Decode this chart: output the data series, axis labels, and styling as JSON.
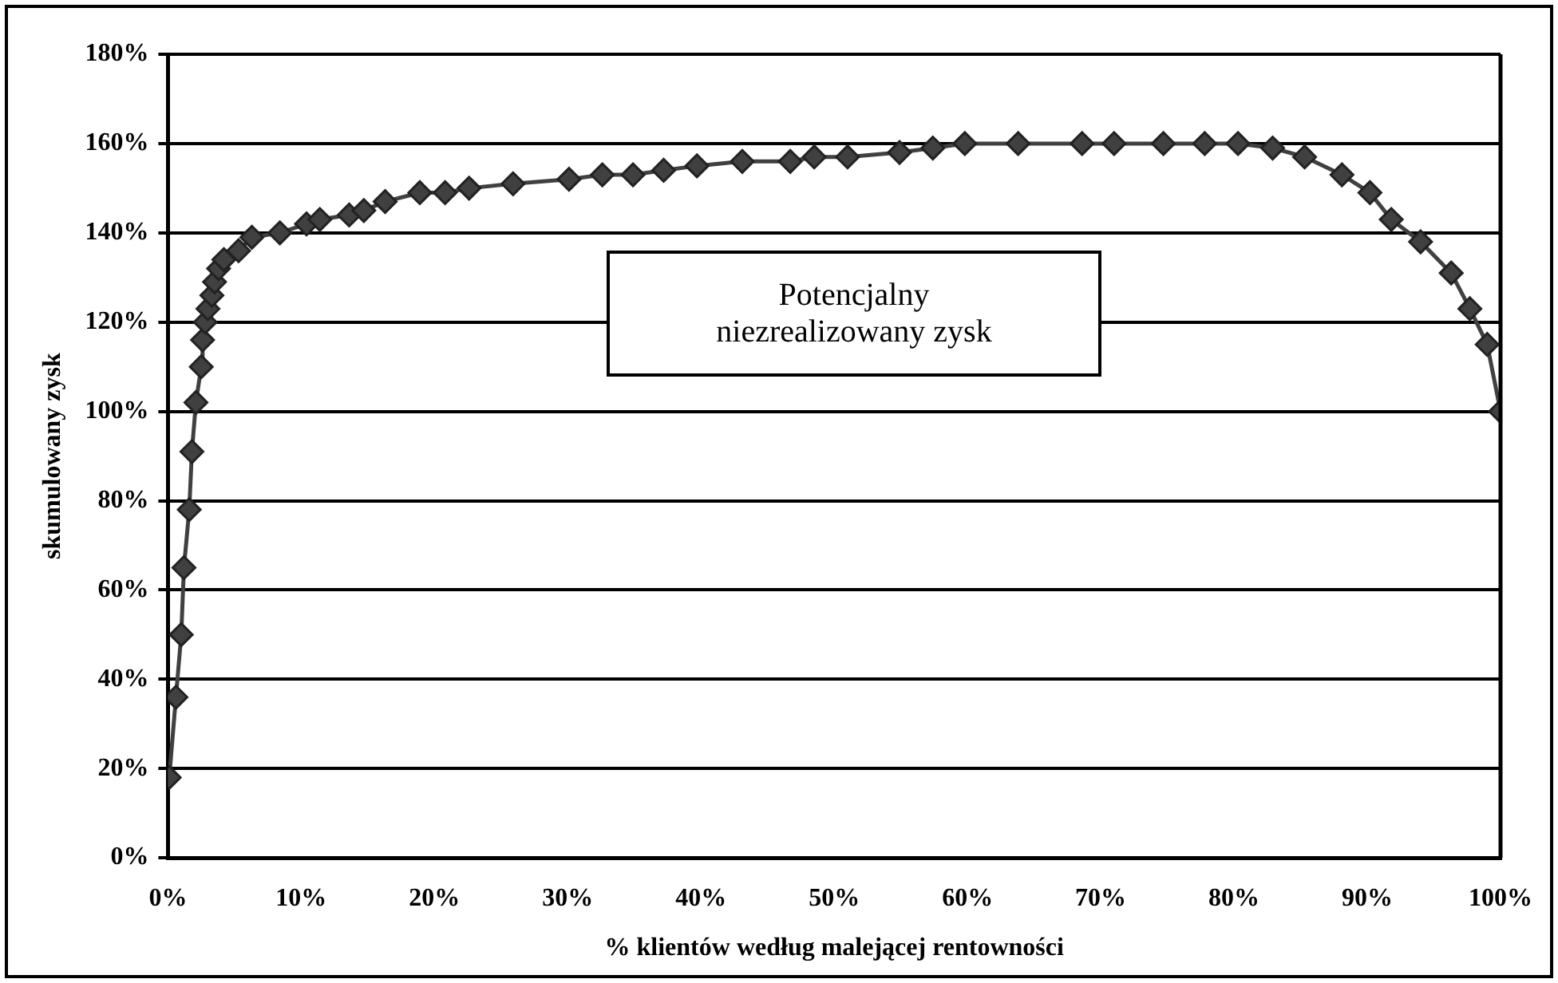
{
  "chart_data": {
    "type": "line",
    "xlabel": "% klientów według malejącej rentowności",
    "ylabel": "skumulowany zysk",
    "x": [
      0.1,
      0.6,
      1.0,
      1.2,
      1.6,
      1.8,
      2.1,
      2.5,
      2.6,
      2.8,
      3.0,
      3.3,
      3.5,
      3.8,
      4.2,
      5.3,
      6.3,
      8.4,
      10.4,
      11.4,
      13.6,
      14.7,
      16.3,
      18.9,
      20.8,
      22.6,
      25.9,
      30.1,
      32.6,
      34.9,
      37.2,
      39.7,
      43.1,
      46.7,
      48.5,
      51,
      54.9,
      57.4,
      59.8,
      63.8,
      68.6,
      71,
      74.7,
      77.8,
      80.3,
      82.9,
      85.3,
      88.1,
      90.2,
      91.8,
      94,
      96.3,
      97.7,
      99,
      100
    ],
    "series": [
      {
        "color": "#404040",
        "values": [
          18,
          36,
          50,
          65,
          78,
          91,
          102,
          110,
          116,
          120,
          123,
          126,
          129,
          132,
          134,
          136,
          139,
          140,
          142,
          143,
          144,
          145,
          147,
          149,
          149,
          150,
          151,
          152,
          153,
          153,
          154,
          155,
          156,
          156,
          157,
          157,
          158,
          159,
          160,
          160,
          160,
          160,
          160,
          160,
          160,
          159,
          157,
          153,
          149,
          143,
          138,
          131,
          123,
          115,
          100
        ]
      }
    ],
    "xlim": [
      0,
      100
    ],
    "ylim": [
      0,
      180
    ],
    "xticks": [
      {
        "value": 0,
        "label": "0%"
      },
      {
        "value": 10,
        "label": "10%"
      },
      {
        "value": 20,
        "label": "20%"
      },
      {
        "value": 30,
        "label": "30%"
      },
      {
        "value": 40,
        "label": "40%"
      },
      {
        "value": 50,
        "label": "50%"
      },
      {
        "value": 60,
        "label": "60%"
      },
      {
        "value": 70,
        "label": "70%"
      },
      {
        "value": 80,
        "label": "80%"
      },
      {
        "value": 90,
        "label": "90%"
      },
      {
        "value": 100,
        "label": "100%"
      }
    ],
    "yticks": [
      {
        "value": 0,
        "label": "0%"
      },
      {
        "value": 20,
        "label": "20%"
      },
      {
        "value": 40,
        "label": "40%"
      },
      {
        "value": 60,
        "label": "60%"
      },
      {
        "value": 80,
        "label": "80%"
      },
      {
        "value": 100,
        "label": "100%"
      },
      {
        "value": 120,
        "label": "120%"
      },
      {
        "value": 140,
        "label": "140%"
      },
      {
        "value": 160,
        "label": "160%"
      },
      {
        "value": 180,
        "label": "180%"
      }
    ],
    "grid": "y",
    "legend": false,
    "marker": "diamond",
    "line_style": "solid",
    "annotations": [
      "Potencjalny niezrealizowany zysk"
    ]
  }
}
